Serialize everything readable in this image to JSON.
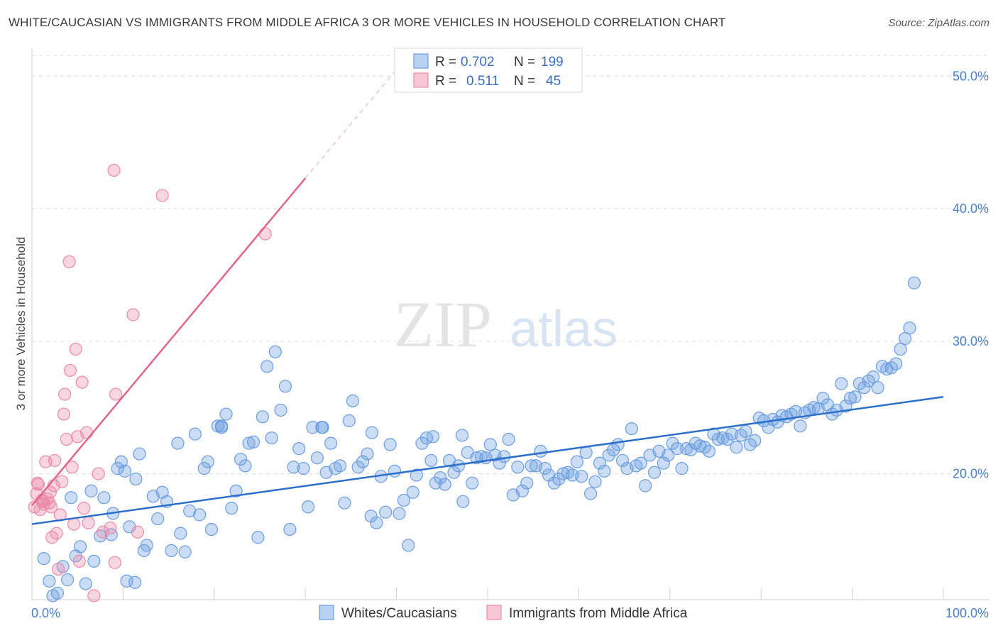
{
  "header": {
    "title": "WHITE/CAUCASIAN VS IMMIGRANTS FROM MIDDLE AFRICA 3 OR MORE VEHICLES IN HOUSEHOLD CORRELATION CHART",
    "source": "Source: ZipAtlas.com"
  },
  "watermark": {
    "part1": "ZIP",
    "part2": "atlas"
  },
  "legend": {
    "r_label": "R =",
    "n_label": "N =",
    "rows": [
      {
        "r": "0.702",
        "n": "199"
      },
      {
        "r": "0.511",
        "n": "45"
      }
    ]
  },
  "chart_data": {
    "type": "scatter",
    "ylabel": "3 or more Vehicles in Household",
    "xlabel": "",
    "xlim": [
      0,
      100
    ],
    "ylim": [
      10.5,
      52
    ],
    "x_ticks": [
      "0.0%",
      "100.0%"
    ],
    "y_ticks": [
      {
        "value": 20,
        "label": "20.0%"
      },
      {
        "value": 30,
        "label": "30.0%"
      },
      {
        "value": 40,
        "label": "40.0%"
      },
      {
        "value": 50,
        "label": "50.0%"
      }
    ],
    "colors": {
      "blue": "#6b9de0",
      "pink": "#ea8aa8",
      "blue_line": "#2b6fcb",
      "pink_line": "#e06590"
    },
    "series": [
      {
        "name": "Whites/Caucasians",
        "color": "#6b9de0",
        "trend": {
          "x0": 0,
          "y0": 16.2,
          "x1": 100,
          "y1": 25.8
        },
        "points": [
          [
            1.3,
            13.6
          ],
          [
            1.9,
            11.9
          ],
          [
            2.3,
            10.8
          ],
          [
            2.8,
            11.0
          ],
          [
            3.4,
            13.0
          ],
          [
            3.9,
            12.0
          ],
          [
            4.3,
            18.2
          ],
          [
            4.8,
            13.8
          ],
          [
            5.3,
            14.5
          ],
          [
            5.9,
            11.7
          ],
          [
            6.5,
            18.7
          ],
          [
            6.8,
            13.4
          ],
          [
            7.5,
            15.3
          ],
          [
            7.9,
            18.2
          ],
          [
            8.7,
            15.4
          ],
          [
            8.9,
            17.0
          ],
          [
            9.4,
            20.4
          ],
          [
            9.8,
            20.9
          ],
          [
            10.4,
            11.9
          ],
          [
            10.7,
            16.0
          ],
          [
            11.3,
            11.8
          ],
          [
            11.8,
            21.5
          ],
          [
            12.3,
            14.2
          ],
          [
            12.6,
            14.6
          ],
          [
            13.3,
            18.3
          ],
          [
            13.8,
            16.6
          ],
          [
            14.3,
            18.6
          ],
          [
            14.8,
            17.9
          ],
          [
            15.3,
            14.2
          ],
          [
            16.0,
            22.3
          ],
          [
            16.3,
            15.5
          ],
          [
            16.8,
            14.1
          ],
          [
            17.3,
            17.2
          ],
          [
            17.9,
            23.0
          ],
          [
            18.4,
            16.9
          ],
          [
            18.9,
            20.4
          ],
          [
            19.3,
            20.9
          ],
          [
            19.7,
            15.8
          ],
          [
            20.4,
            23.6
          ],
          [
            20.8,
            23.6
          ],
          [
            21.3,
            24.5
          ],
          [
            21.9,
            17.4
          ],
          [
            22.4,
            18.7
          ],
          [
            22.9,
            21.1
          ],
          [
            23.4,
            20.6
          ],
          [
            23.8,
            22.3
          ],
          [
            24.3,
            22.4
          ],
          [
            24.8,
            15.2
          ],
          [
            25.3,
            24.3
          ],
          [
            25.8,
            28.1
          ],
          [
            26.3,
            22.7
          ],
          [
            26.7,
            29.2
          ],
          [
            27.3,
            24.8
          ],
          [
            27.8,
            26.6
          ],
          [
            28.3,
            15.8
          ],
          [
            28.7,
            20.5
          ],
          [
            29.3,
            21.9
          ],
          [
            29.8,
            20.4
          ],
          [
            30.3,
            17.5
          ],
          [
            30.8,
            23.5
          ],
          [
            31.3,
            21.2
          ],
          [
            31.8,
            23.5
          ],
          [
            32.3,
            20.1
          ],
          [
            32.8,
            22.3
          ],
          [
            33.3,
            20.4
          ],
          [
            33.8,
            20.6
          ],
          [
            34.3,
            17.8
          ],
          [
            34.8,
            24.0
          ],
          [
            35.2,
            25.5
          ],
          [
            35.8,
            20.5
          ],
          [
            36.3,
            20.9
          ],
          [
            36.8,
            21.5
          ],
          [
            37.3,
            23.1
          ],
          [
            37.8,
            16.3
          ],
          [
            38.3,
            19.8
          ],
          [
            38.8,
            17.1
          ],
          [
            39.3,
            22.2
          ],
          [
            39.8,
            20.2
          ],
          [
            40.3,
            17.0
          ],
          [
            40.8,
            18.0
          ],
          [
            41.3,
            14.6
          ],
          [
            41.8,
            18.6
          ],
          [
            42.2,
            19.9
          ],
          [
            42.8,
            22.3
          ],
          [
            43.3,
            22.7
          ],
          [
            43.8,
            21.0
          ],
          [
            44.3,
            19.3
          ],
          [
            44.8,
            19.7
          ],
          [
            45.3,
            19.2
          ],
          [
            45.8,
            21.0
          ],
          [
            46.3,
            20.1
          ],
          [
            46.8,
            20.6
          ],
          [
            47.3,
            17.9
          ],
          [
            47.8,
            21.6
          ],
          [
            48.3,
            19.3
          ],
          [
            48.8,
            21.2
          ],
          [
            49.3,
            21.3
          ],
          [
            49.8,
            21.2
          ],
          [
            50.3,
            22.2
          ],
          [
            50.8,
            21.4
          ],
          [
            51.3,
            20.8
          ],
          [
            51.8,
            21.3
          ],
          [
            52.3,
            22.6
          ],
          [
            52.8,
            18.4
          ],
          [
            53.3,
            20.5
          ],
          [
            53.8,
            18.7
          ],
          [
            54.3,
            19.3
          ],
          [
            54.8,
            20.6
          ],
          [
            55.3,
            20.6
          ],
          [
            55.8,
            21.7
          ],
          [
            56.3,
            20.4
          ],
          [
            56.7,
            19.9
          ],
          [
            57.3,
            19.3
          ],
          [
            57.8,
            19.6
          ],
          [
            58.3,
            20.0
          ],
          [
            58.8,
            20.1
          ],
          [
            59.3,
            19.9
          ],
          [
            59.8,
            20.9
          ],
          [
            60.3,
            19.8
          ],
          [
            60.8,
            21.6
          ],
          [
            61.3,
            18.5
          ],
          [
            61.8,
            19.4
          ],
          [
            62.3,
            20.8
          ],
          [
            62.8,
            20.2
          ],
          [
            63.3,
            21.4
          ],
          [
            63.8,
            21.8
          ],
          [
            64.3,
            22.2
          ],
          [
            64.8,
            21.0
          ],
          [
            65.3,
            20.4
          ],
          [
            65.8,
            23.4
          ],
          [
            66.3,
            20.6
          ],
          [
            66.8,
            20.8
          ],
          [
            67.3,
            19.1
          ],
          [
            67.8,
            21.4
          ],
          [
            68.3,
            20.1
          ],
          [
            68.8,
            21.7
          ],
          [
            69.3,
            20.8
          ],
          [
            69.8,
            21.4
          ],
          [
            70.3,
            22.3
          ],
          [
            70.8,
            21.9
          ],
          [
            71.3,
            20.4
          ],
          [
            71.8,
            21.9
          ],
          [
            72.3,
            21.8
          ],
          [
            72.8,
            22.3
          ],
          [
            73.3,
            22.1
          ],
          [
            73.8,
            22.0
          ],
          [
            74.3,
            21.7
          ],
          [
            74.8,
            23.0
          ],
          [
            75.3,
            22.6
          ],
          [
            75.8,
            22.7
          ],
          [
            76.3,
            22.6
          ],
          [
            76.8,
            23.0
          ],
          [
            77.3,
            22.0
          ],
          [
            77.8,
            22.9
          ],
          [
            78.3,
            23.2
          ],
          [
            78.8,
            22.2
          ],
          [
            79.3,
            22.5
          ],
          [
            79.8,
            24.2
          ],
          [
            80.3,
            24.0
          ],
          [
            80.8,
            23.5
          ],
          [
            81.3,
            24.1
          ],
          [
            81.8,
            23.9
          ],
          [
            82.3,
            24.4
          ],
          [
            82.8,
            24.3
          ],
          [
            83.3,
            24.5
          ],
          [
            83.8,
            24.7
          ],
          [
            84.3,
            23.6
          ],
          [
            84.8,
            24.6
          ],
          [
            85.3,
            24.8
          ],
          [
            85.8,
            25.0
          ],
          [
            86.3,
            24.9
          ],
          [
            86.8,
            25.7
          ],
          [
            87.3,
            25.2
          ],
          [
            87.8,
            24.5
          ],
          [
            88.3,
            24.8
          ],
          [
            88.8,
            26.8
          ],
          [
            89.3,
            25.1
          ],
          [
            89.8,
            25.7
          ],
          [
            90.3,
            25.8
          ],
          [
            90.8,
            26.8
          ],
          [
            91.3,
            26.5
          ],
          [
            91.8,
            27.0
          ],
          [
            92.3,
            27.3
          ],
          [
            92.8,
            26.5
          ],
          [
            93.3,
            28.1
          ],
          [
            93.8,
            27.9
          ],
          [
            94.3,
            28.0
          ],
          [
            94.8,
            28.3
          ],
          [
            95.3,
            29.4
          ],
          [
            95.8,
            30.2
          ],
          [
            96.3,
            31.0
          ],
          [
            96.8,
            34.4
          ],
          [
            20.8,
            23.5
          ],
          [
            10.2,
            20.2
          ],
          [
            31.9,
            23.5
          ],
          [
            44.0,
            22.8
          ],
          [
            37.2,
            16.8
          ],
          [
            47.2,
            22.9
          ],
          [
            11.4,
            19.6
          ]
        ]
      },
      {
        "name": "Immigrants from Middle Africa",
        "color": "#ea8aa8",
        "trend": {
          "x0": 0,
          "y0": 17.6,
          "x1": 30,
          "y1": 42.3,
          "dash_x1": 40,
          "dash_y1": 50.5
        },
        "points": [
          [
            0.3,
            17.5
          ],
          [
            0.5,
            18.5
          ],
          [
            0.7,
            19.2
          ],
          [
            0.9,
            17.3
          ],
          [
            1.1,
            18.0
          ],
          [
            1.3,
            17.7
          ],
          [
            1.5,
            20.9
          ],
          [
            1.7,
            18.1
          ],
          [
            1.9,
            17.8
          ],
          [
            2.1,
            17.5
          ],
          [
            2.2,
            15.2
          ],
          [
            2.4,
            19.1
          ],
          [
            2.5,
            21.0
          ],
          [
            2.7,
            15.5
          ],
          [
            2.9,
            12.8
          ],
          [
            3.1,
            16.9
          ],
          [
            3.3,
            19.4
          ],
          [
            3.5,
            24.5
          ],
          [
            3.6,
            26.0
          ],
          [
            3.8,
            22.6
          ],
          [
            4.1,
            36.0
          ],
          [
            4.2,
            27.8
          ],
          [
            4.4,
            20.5
          ],
          [
            4.6,
            16.2
          ],
          [
            4.8,
            29.4
          ],
          [
            5.0,
            22.8
          ],
          [
            5.2,
            13.4
          ],
          [
            5.5,
            26.9
          ],
          [
            5.7,
            17.4
          ],
          [
            6.0,
            23.1
          ],
          [
            6.2,
            16.3
          ],
          [
            6.8,
            10.8
          ],
          [
            7.3,
            20.0
          ],
          [
            7.8,
            15.6
          ],
          [
            8.6,
            15.9
          ],
          [
            9.0,
            42.9
          ],
          [
            9.1,
            13.3
          ],
          [
            9.2,
            26.0
          ],
          [
            11.1,
            32.0
          ],
          [
            11.6,
            15.6
          ],
          [
            14.3,
            41.0
          ],
          [
            25.6,
            38.1
          ],
          [
            0.6,
            19.3
          ],
          [
            1.2,
            17.9
          ],
          [
            2.0,
            18.6
          ]
        ]
      }
    ]
  }
}
